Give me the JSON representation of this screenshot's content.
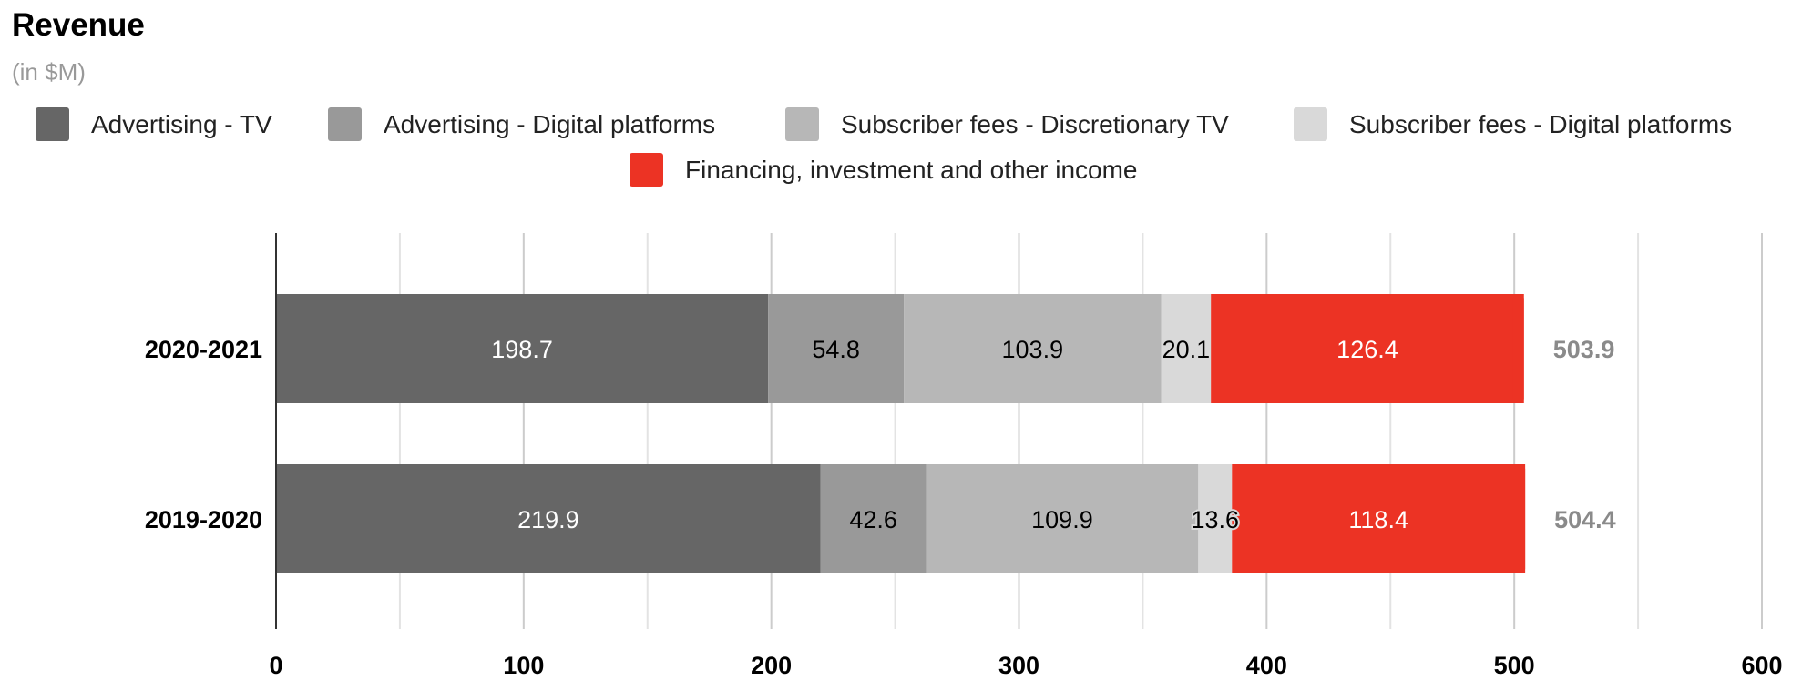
{
  "chart_data": {
    "type": "bar",
    "orientation": "horizontal",
    "stacked": true,
    "title": "Revenue",
    "subtitle": "(in $M)",
    "categories": [
      "2020-2021",
      "2019-2020"
    ],
    "series": [
      {
        "name": "Advertising - TV",
        "color": "#666666",
        "label_color": "#ffffff",
        "values": [
          198.7,
          219.9
        ]
      },
      {
        "name": "Advertising - Digital platforms",
        "color": "#999999",
        "label_color": "#000000",
        "values": [
          54.8,
          42.6
        ]
      },
      {
        "name": "Subscriber fees - Discretionary TV",
        "color": "#b7b7b7",
        "label_color": "#000000",
        "values": [
          103.9,
          109.9
        ]
      },
      {
        "name": "Subscriber fees - Digital platforms",
        "color": "#d9d9d9",
        "label_color": "#000000",
        "values": [
          20.1,
          13.6
        ]
      },
      {
        "name": "Financing, investment and other income",
        "color": "#ec3324",
        "label_color": "#ffffff",
        "values": [
          126.4,
          118.4
        ]
      }
    ],
    "totals": [
      "503.9",
      "504.4"
    ],
    "xlim": [
      0,
      600
    ],
    "xticks": [
      "0",
      "100",
      "200",
      "300",
      "400",
      "500",
      "600"
    ],
    "grid": true,
    "legend": "top"
  }
}
